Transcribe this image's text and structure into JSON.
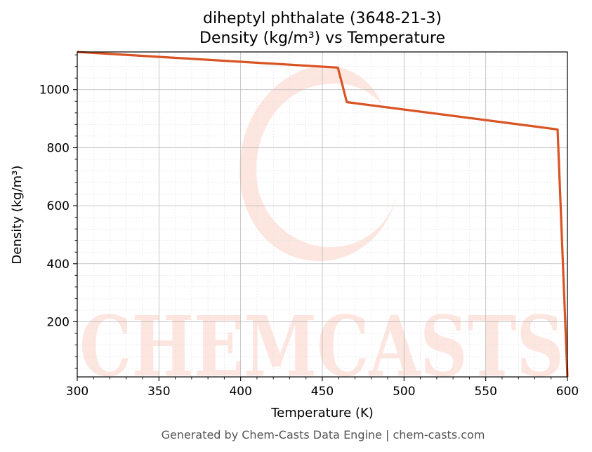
{
  "footer": "Generated by Chem-Casts Data Engine | chem-casts.com",
  "watermark": "CHEMCASTS",
  "chart_data": {
    "type": "line",
    "title": "diheptyl phthalate (3648-21-3)",
    "subtitle": "Density (kg/m³) vs Temperature",
    "xlabel": "Temperature (K)",
    "ylabel": "Density (kg/m³)",
    "xlim": [
      300,
      600
    ],
    "ylim": [
      10,
      1130
    ],
    "x_ticks": [
      300,
      350,
      400,
      450,
      500,
      550,
      600
    ],
    "y_ticks": [
      200,
      400,
      600,
      800,
      1000
    ],
    "grid": true,
    "minor_grid": true,
    "color": "#d95323",
    "series": [
      {
        "x": [
          300,
          459.5,
          465,
          594,
          600
        ],
        "y": [
          1130,
          1076,
          957,
          863,
          10
        ]
      }
    ]
  }
}
